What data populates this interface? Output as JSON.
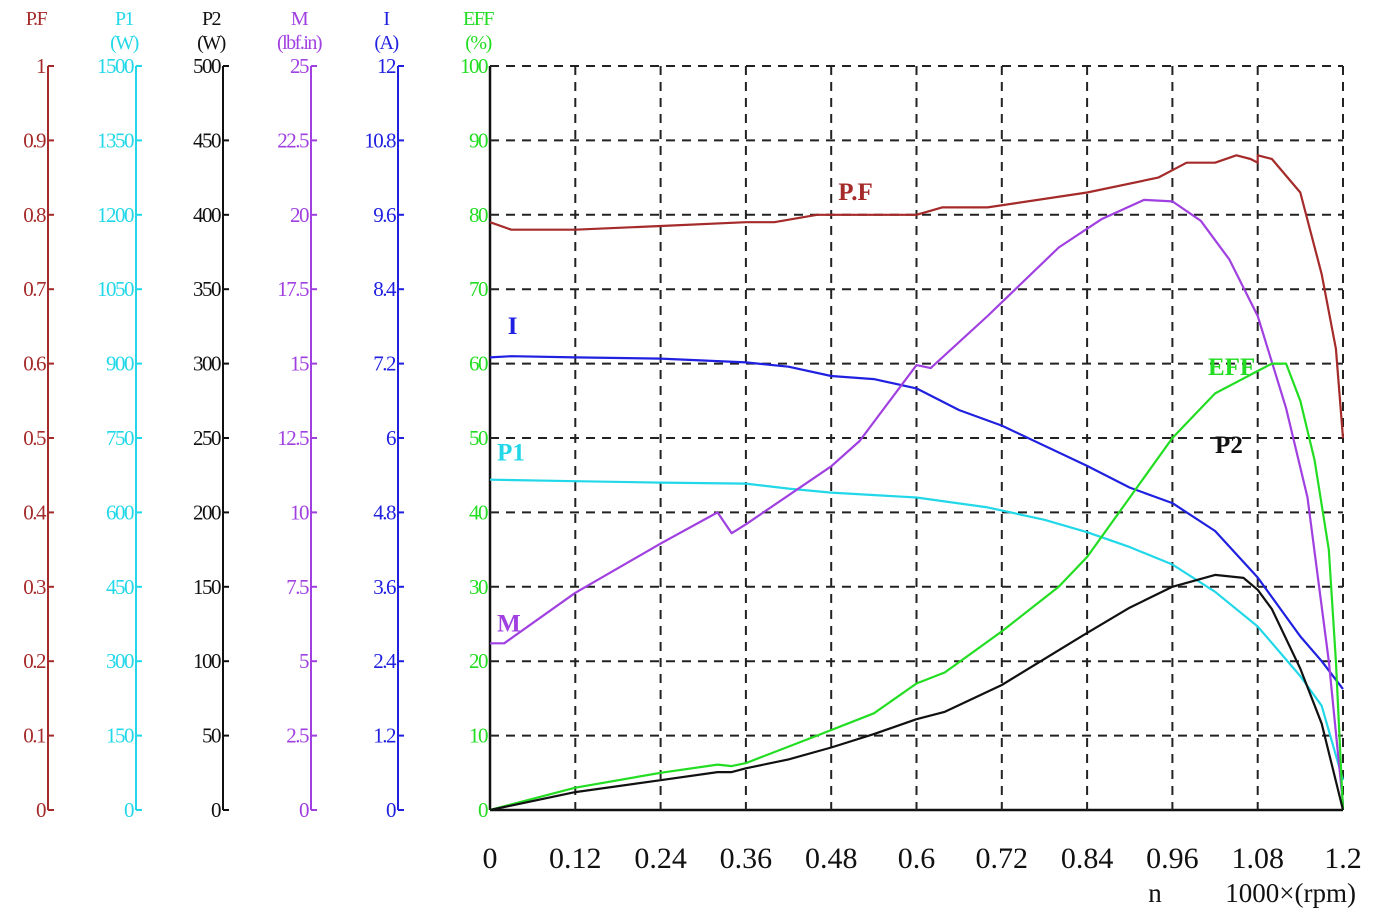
{
  "chart_data": {
    "type": "line",
    "xlabel": "n",
    "xunit": "1000×(rpm)",
    "xlim": [
      0,
      1.2
    ],
    "x_ticks": [
      "0",
      "0.12",
      "0.24",
      "0.36",
      "0.48",
      "0.6",
      "0.72",
      "0.84",
      "0.96",
      "1.08",
      "1.2"
    ],
    "grid": true,
    "axes": [
      {
        "key": "pf",
        "title": "P.F",
        "unit": "",
        "color": "#a52a2a",
        "max": 1,
        "ticks": [
          "1",
          "0.9",
          "0.8",
          "0.7",
          "0.6",
          "0.5",
          "0.4",
          "0.3",
          "0.2",
          "0.1",
          "0"
        ]
      },
      {
        "key": "p1",
        "title": "P1",
        "unit": "(W)",
        "color": "#22d8e8",
        "max": 1500,
        "ticks": [
          "1500",
          "1350",
          "1200",
          "1050",
          "900",
          "750",
          "600",
          "450",
          "300",
          "150",
          "0"
        ]
      },
      {
        "key": "p2",
        "title": "P2",
        "unit": "(W)",
        "color": "#111111",
        "max": 500,
        "ticks": [
          "500",
          "450",
          "400",
          "350",
          "300",
          "250",
          "200",
          "150",
          "100",
          "50",
          "0"
        ]
      },
      {
        "key": "m",
        "title": "M",
        "unit": "(lbf.in)",
        "color": "#a040e0",
        "max": 25,
        "ticks": [
          "25",
          "22.5",
          "20",
          "17.5",
          "15",
          "12.5",
          "10",
          "7.5",
          "5",
          "2.5",
          "0"
        ]
      },
      {
        "key": "i",
        "title": "I",
        "unit": "(A)",
        "color": "#2020e0",
        "max": 12,
        "ticks": [
          "12",
          "10.8",
          "9.6",
          "8.4",
          "7.2",
          "6",
          "4.8",
          "3.6",
          "2.4",
          "1.2",
          "0"
        ]
      },
      {
        "key": "eff",
        "title": "EFF",
        "unit": "(%)",
        "color": "#22dd22",
        "max": 100,
        "ticks": [
          "100",
          "90",
          "80",
          "70",
          "60",
          "50",
          "40",
          "30",
          "20",
          "10",
          "0"
        ]
      }
    ],
    "series": [
      {
        "name": "P.F",
        "axis": "pf",
        "color": "#a52a2a",
        "points": [
          [
            0,
            0.79
          ],
          [
            0.03,
            0.78
          ],
          [
            0.12,
            0.78
          ],
          [
            0.24,
            0.785
          ],
          [
            0.36,
            0.79
          ],
          [
            0.4,
            0.79
          ],
          [
            0.46,
            0.8
          ],
          [
            0.6,
            0.8
          ],
          [
            0.636,
            0.81
          ],
          [
            0.7,
            0.81
          ],
          [
            0.84,
            0.83
          ],
          [
            0.94,
            0.85
          ],
          [
            0.96,
            0.86
          ],
          [
            0.98,
            0.87
          ],
          [
            1.02,
            0.87
          ],
          [
            1.05,
            0.88
          ],
          [
            1.07,
            0.875
          ],
          [
            1.08,
            0.87
          ],
          [
            1.08,
            0.88
          ],
          [
            1.1,
            0.875
          ],
          [
            1.14,
            0.83
          ],
          [
            1.17,
            0.72
          ],
          [
            1.19,
            0.62
          ],
          [
            1.2,
            0.5
          ]
        ]
      },
      {
        "name": "I",
        "axis": "i",
        "color": "#2020e0",
        "points": [
          [
            0,
            7.3
          ],
          [
            0.03,
            7.32
          ],
          [
            0.12,
            7.3
          ],
          [
            0.24,
            7.28
          ],
          [
            0.36,
            7.22
          ],
          [
            0.42,
            7.15
          ],
          [
            0.48,
            7.0
          ],
          [
            0.54,
            6.95
          ],
          [
            0.6,
            6.8
          ],
          [
            0.66,
            6.45
          ],
          [
            0.72,
            6.2
          ],
          [
            0.84,
            5.55
          ],
          [
            0.9,
            5.2
          ],
          [
            0.96,
            4.95
          ],
          [
            1.02,
            4.5
          ],
          [
            1.08,
            3.75
          ],
          [
            1.14,
            2.8
          ],
          [
            1.17,
            2.4
          ],
          [
            1.2,
            1.95
          ]
        ]
      },
      {
        "name": "P1",
        "axis": "p1",
        "color": "#22d8e8",
        "points": [
          [
            0,
            666
          ],
          [
            0.12,
            663
          ],
          [
            0.24,
            660
          ],
          [
            0.36,
            658
          ],
          [
            0.42,
            648
          ],
          [
            0.48,
            640
          ],
          [
            0.6,
            630
          ],
          [
            0.7,
            610
          ],
          [
            0.78,
            585
          ],
          [
            0.84,
            560
          ],
          [
            0.9,
            530
          ],
          [
            0.96,
            495
          ],
          [
            1.02,
            440
          ],
          [
            1.08,
            370
          ],
          [
            1.14,
            270
          ],
          [
            1.17,
            210
          ],
          [
            1.2,
            60
          ]
        ]
      },
      {
        "name": "M",
        "axis": "m",
        "color": "#a040e0",
        "points": [
          [
            0,
            5.6
          ],
          [
            0.02,
            5.6
          ],
          [
            0.12,
            7.3
          ],
          [
            0.24,
            8.95
          ],
          [
            0.32,
            10.0
          ],
          [
            0.34,
            9.3
          ],
          [
            0.36,
            9.6
          ],
          [
            0.48,
            11.55
          ],
          [
            0.52,
            12.4
          ],
          [
            0.6,
            14.95
          ],
          [
            0.62,
            14.85
          ],
          [
            0.7,
            16.6
          ],
          [
            0.8,
            18.9
          ],
          [
            0.86,
            19.85
          ],
          [
            0.92,
            20.5
          ],
          [
            0.96,
            20.45
          ],
          [
            1.0,
            19.8
          ],
          [
            1.04,
            18.5
          ],
          [
            1.08,
            16.6
          ],
          [
            1.12,
            13.5
          ],
          [
            1.15,
            10.5
          ],
          [
            1.18,
            5.0
          ],
          [
            1.2,
            0.2
          ]
        ]
      },
      {
        "name": "EFF",
        "axis": "eff",
        "color": "#22dd22",
        "points": [
          [
            0,
            0
          ],
          [
            0.12,
            3
          ],
          [
            0.24,
            5
          ],
          [
            0.32,
            6.1
          ],
          [
            0.34,
            5.9
          ],
          [
            0.36,
            6.3
          ],
          [
            0.46,
            10
          ],
          [
            0.54,
            13
          ],
          [
            0.6,
            17
          ],
          [
            0.64,
            18.5
          ],
          [
            0.72,
            24
          ],
          [
            0.8,
            30
          ],
          [
            0.84,
            34
          ],
          [
            0.9,
            42
          ],
          [
            0.96,
            50
          ],
          [
            1.02,
            56
          ],
          [
            1.08,
            59
          ],
          [
            1.1,
            60
          ],
          [
            1.12,
            60
          ],
          [
            1.14,
            55
          ],
          [
            1.16,
            47
          ],
          [
            1.18,
            35
          ],
          [
            1.19,
            20
          ],
          [
            1.2,
            0
          ]
        ]
      },
      {
        "name": "P2",
        "axis": "p2",
        "color": "#111111",
        "points": [
          [
            0,
            0
          ],
          [
            0.12,
            12
          ],
          [
            0.24,
            20
          ],
          [
            0.32,
            25.5
          ],
          [
            0.34,
            25.5
          ],
          [
            0.36,
            28
          ],
          [
            0.42,
            34
          ],
          [
            0.48,
            42
          ],
          [
            0.54,
            51
          ],
          [
            0.6,
            61
          ],
          [
            0.64,
            66
          ],
          [
            0.72,
            84
          ],
          [
            0.84,
            119
          ],
          [
            0.9,
            136
          ],
          [
            0.96,
            150
          ],
          [
            1.02,
            158
          ],
          [
            1.06,
            156
          ],
          [
            1.08,
            148
          ],
          [
            1.1,
            135
          ],
          [
            1.14,
            95
          ],
          [
            1.17,
            58
          ],
          [
            1.2,
            0
          ]
        ]
      }
    ],
    "annotations": [
      {
        "text": "P.F",
        "color": "#a52a2a",
        "x": 0.49,
        "axis": "eff",
        "y": 82
      },
      {
        "text": "I",
        "color": "#2020e0",
        "x": 0.025,
        "axis": "eff",
        "y": 64
      },
      {
        "text": "P1",
        "color": "#22d8e8",
        "x": 0.01,
        "axis": "eff",
        "y": 47
      },
      {
        "text": "M",
        "color": "#a040e0",
        "x": 0.01,
        "axis": "eff",
        "y": 24
      },
      {
        "text": "EFF",
        "color": "#22dd22",
        "x": 1.01,
        "axis": "eff",
        "y": 58.5
      },
      {
        "text": "P2",
        "color": "#111111",
        "x": 1.02,
        "axis": "eff",
        "y": 48
      }
    ]
  }
}
